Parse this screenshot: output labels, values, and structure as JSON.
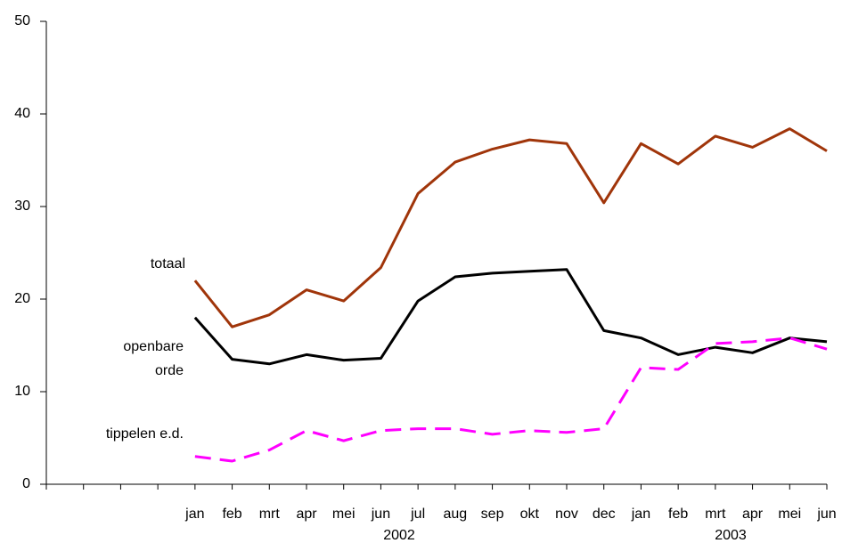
{
  "chart_data": {
    "type": "line",
    "categories": [
      null,
      null,
      null,
      null,
      "jan",
      "feb",
      "mrt",
      "apr",
      "mei",
      "jun",
      "jul",
      "aug",
      "sep",
      "okt",
      "nov",
      "dec",
      "jan",
      "feb",
      "mrt",
      "apr",
      "mei",
      "jun"
    ],
    "annotations": [
      "2002",
      "2003"
    ],
    "ylim": [
      0,
      50
    ],
    "yticks": [
      0,
      10,
      20,
      30,
      40,
      50
    ],
    "grid": false,
    "series": [
      {
        "name": "totaal",
        "color": "#a0350a",
        "dash": false,
        "values": [
          null,
          null,
          null,
          null,
          22,
          17,
          18.3,
          21,
          19.8,
          23.4,
          31.4,
          34.8,
          36.2,
          37.2,
          36.8,
          30.4,
          36.8,
          34.6,
          37.6,
          36.4,
          38.4,
          36
        ]
      },
      {
        "name": "openbare orde",
        "color": "#000000",
        "dash": false,
        "values": [
          null,
          null,
          null,
          null,
          18,
          13.5,
          13,
          14,
          13.4,
          13.6,
          19.8,
          22.4,
          22.8,
          23,
          23.2,
          16.6,
          15.8,
          14,
          14.8,
          14.2,
          15.8,
          15.4
        ]
      },
      {
        "name": "tippelen e.d.",
        "color": "#ff00ff",
        "dash": true,
        "values": [
          null,
          null,
          null,
          null,
          3,
          2.5,
          3.7,
          5.8,
          4.7,
          5.8,
          6,
          6,
          5.4,
          5.8,
          5.6,
          6,
          12.6,
          12.4,
          15.2,
          15.4,
          15.8,
          14.6
        ]
      }
    ]
  }
}
